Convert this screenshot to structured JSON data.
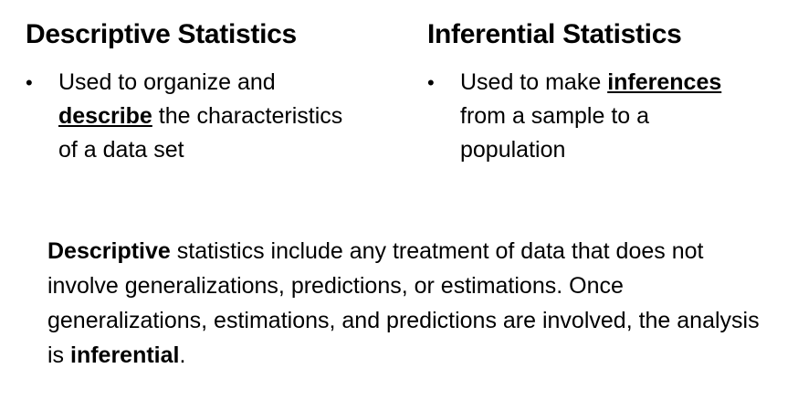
{
  "left": {
    "heading": "Descriptive Statistics",
    "bullet_symbol": "•",
    "bullet": {
      "line1": "Used to organize and",
      "emphasis": "describe",
      "rest": " the characteristics",
      "line3": "of a data set"
    }
  },
  "right": {
    "heading": "Inferential Statistics",
    "bullet_symbol": "•",
    "bullet": {
      "lead": "Used to make ",
      "emphasis": "inferences",
      "line2": "from a sample to a",
      "line3": "population"
    }
  },
  "summary": {
    "term1": "Descriptive",
    "text1": " statistics include any treatment of data that does not involve generalizations, predictions, or estimations. Once generalizations, estimations, and predictions are involved, the analysis is ",
    "term2": "inferential",
    "text2": "."
  }
}
